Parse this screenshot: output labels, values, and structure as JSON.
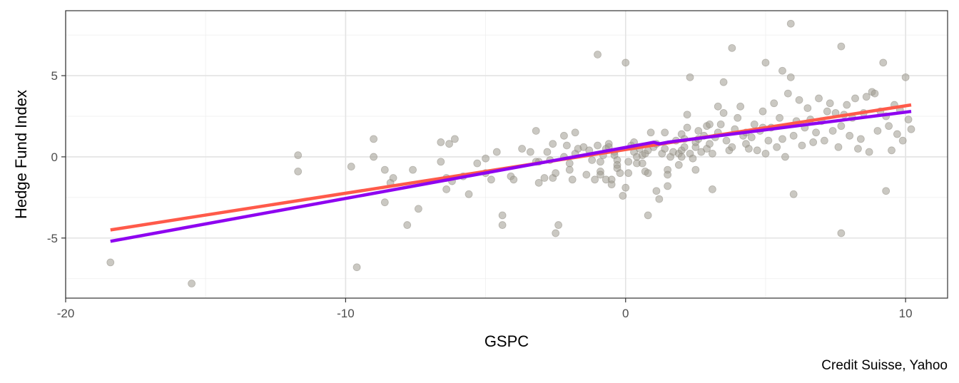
{
  "chart_data": {
    "type": "scatter",
    "xlabel": "GSPC",
    "ylabel": "Hedge Fund Index",
    "caption": "Credit Suisse, Yahoo",
    "xlim": [
      -20,
      11.5
    ],
    "ylim": [
      -8.7,
      9
    ],
    "x_ticks": [
      -20,
      -10,
      0,
      10
    ],
    "x_tick_labels": [
      "-20",
      "-10",
      "0",
      "10"
    ],
    "y_ticks": [
      -5,
      0,
      5
    ],
    "y_tick_labels": [
      "-5",
      "0",
      "5"
    ],
    "grid": true,
    "theme": "bw",
    "point_color": "#9e9a8f",
    "series": [
      {
        "type": "scatter",
        "points": [
          [
            -18.4,
            -6.5
          ],
          [
            -15.5,
            -7.8
          ],
          [
            -11.7,
            0.1
          ],
          [
            -11.7,
            -0.9
          ],
          [
            -9.8,
            -0.6
          ],
          [
            -9.6,
            -6.8
          ],
          [
            -9.0,
            1.1
          ],
          [
            -9.0,
            0.0
          ],
          [
            -8.6,
            -0.8
          ],
          [
            -8.6,
            -2.8
          ],
          [
            -8.4,
            -1.6
          ],
          [
            -8.3,
            -1.3
          ],
          [
            -7.8,
            -4.2
          ],
          [
            -7.6,
            -0.8
          ],
          [
            -7.4,
            -3.2
          ],
          [
            -6.6,
            0.9
          ],
          [
            -6.6,
            -0.3
          ],
          [
            -6.4,
            -1.3
          ],
          [
            -6.4,
            -2.0
          ],
          [
            -6.3,
            0.8
          ],
          [
            -6.2,
            -1.5
          ],
          [
            -6.1,
            1.1
          ],
          [
            -5.8,
            -1.2
          ],
          [
            -5.6,
            -2.3
          ],
          [
            -5.3,
            -0.4
          ],
          [
            -5.0,
            -0.1
          ],
          [
            -5.0,
            -1.0
          ],
          [
            -4.8,
            -1.4
          ],
          [
            -4.6,
            0.3
          ],
          [
            -4.4,
            -3.6
          ],
          [
            -4.4,
            -4.2
          ],
          [
            -4.1,
            -1.2
          ],
          [
            -4.0,
            -1.4
          ],
          [
            -3.7,
            0.5
          ],
          [
            -3.4,
            0.3
          ],
          [
            -3.2,
            1.6
          ],
          [
            -3.1,
            -0.3
          ],
          [
            -3.1,
            -1.6
          ],
          [
            -2.9,
            -1.3
          ],
          [
            -2.8,
            0.3
          ],
          [
            -2.7,
            -0.2
          ],
          [
            -2.6,
            0.8
          ],
          [
            -2.6,
            -1.3
          ],
          [
            -2.5,
            -1.0
          ],
          [
            -2.5,
            -4.7
          ],
          [
            -2.4,
            -4.2
          ],
          [
            -2.2,
            1.3
          ],
          [
            -2.1,
            0.7
          ],
          [
            -2.0,
            -0.4
          ],
          [
            -2.0,
            -0.8
          ],
          [
            -1.9,
            -1.4
          ],
          [
            -1.8,
            0.2
          ],
          [
            -1.7,
            0.5
          ],
          [
            -1.5,
            0.6
          ],
          [
            -1.4,
            -1.1
          ],
          [
            -1.3,
            0.4
          ],
          [
            -1.2,
            -0.2
          ],
          [
            -1.1,
            -1.4
          ],
          [
            -1.0,
            0.7
          ],
          [
            -1.0,
            6.3
          ],
          [
            -0.9,
            -0.3
          ],
          [
            -0.9,
            -0.9
          ],
          [
            -0.9,
            -1.1
          ],
          [
            -0.8,
            0.1
          ],
          [
            -0.7,
            0.5
          ],
          [
            -0.7,
            -1.4
          ],
          [
            -0.6,
            0.8
          ],
          [
            -0.6,
            0.6
          ],
          [
            -0.5,
            -1.4
          ],
          [
            -0.5,
            -1.7
          ],
          [
            -0.4,
            0.3
          ],
          [
            -0.4,
            0.1
          ],
          [
            -0.3,
            -0.2
          ],
          [
            -0.3,
            -0.5
          ],
          [
            -0.3,
            -0.7
          ],
          [
            -0.2,
            -1.0
          ],
          [
            -0.1,
            -2.4
          ],
          [
            0.0,
            -1.9
          ],
          [
            0.1,
            -1.0
          ],
          [
            0.1,
            -0.3
          ],
          [
            0.2,
            0.7
          ],
          [
            0.3,
            0.3
          ],
          [
            0.3,
            0.9
          ],
          [
            0.4,
            0.0
          ],
          [
            0.4,
            -0.4
          ],
          [
            0.5,
            0.5
          ],
          [
            0.6,
            0.1
          ],
          [
            0.6,
            -0.4
          ],
          [
            0.7,
            0.2
          ],
          [
            0.7,
            -0.9
          ],
          [
            0.8,
            0.4
          ],
          [
            0.8,
            -1.0
          ],
          [
            0.9,
            1.5
          ],
          [
            1.0,
            0.6
          ],
          [
            1.1,
            0.8
          ],
          [
            1.1,
            -2.1
          ],
          [
            1.2,
            -2.6
          ],
          [
            1.3,
            0.2
          ],
          [
            1.4,
            0.5
          ],
          [
            1.4,
            1.5
          ],
          [
            1.5,
            -0.8
          ],
          [
            1.5,
            -1.1
          ],
          [
            1.6,
            0.0
          ],
          [
            1.7,
            0.3
          ],
          [
            1.8,
            1.0
          ],
          [
            1.9,
            0.2
          ],
          [
            2.0,
            0.4
          ],
          [
            2.0,
            0.0
          ],
          [
            2.0,
            1.4
          ],
          [
            2.1,
            0.6
          ],
          [
            2.1,
            1.1
          ],
          [
            2.2,
            2.6
          ],
          [
            2.2,
            1.8
          ],
          [
            2.3,
            0.2
          ],
          [
            2.4,
            -0.1
          ],
          [
            2.5,
            0.6
          ],
          [
            2.5,
            0.9
          ],
          [
            2.6,
            1.1
          ],
          [
            2.6,
            1.6
          ],
          [
            2.7,
            0.3
          ],
          [
            2.8,
            1.3
          ],
          [
            2.9,
            0.5
          ],
          [
            2.9,
            1.9
          ],
          [
            3.0,
            2.0
          ],
          [
            3.0,
            0.8
          ],
          [
            3.1,
            0.2
          ],
          [
            3.2,
            1.2
          ],
          [
            3.3,
            1.5
          ],
          [
            3.3,
            3.1
          ],
          [
            3.4,
            2.0
          ],
          [
            3.5,
            2.7
          ],
          [
            3.6,
            1.0
          ],
          [
            3.7,
            0.4
          ],
          [
            3.8,
            0.6
          ],
          [
            3.9,
            1.7
          ],
          [
            4.0,
            2.4
          ],
          [
            4.1,
            3.1
          ],
          [
            4.2,
            1.3
          ],
          [
            4.3,
            0.8
          ],
          [
            4.3,
            1.5
          ],
          [
            4.4,
            0.5
          ],
          [
            4.5,
            1.2
          ],
          [
            4.6,
            2.0
          ],
          [
            4.7,
            0.4
          ],
          [
            4.8,
            1.6
          ],
          [
            4.9,
            2.8
          ],
          [
            5.0,
            0.2
          ],
          [
            5.1,
            1.0
          ],
          [
            5.2,
            1.8
          ],
          [
            5.3,
            3.3
          ],
          [
            5.4,
            0.6
          ],
          [
            5.5,
            2.4
          ],
          [
            5.6,
            1.1
          ],
          [
            5.7,
            0.0
          ],
          [
            5.8,
            3.9
          ],
          [
            5.9,
            4.9
          ],
          [
            6.0,
            1.3
          ],
          [
            6.1,
            2.2
          ],
          [
            6.2,
            3.5
          ],
          [
            6.3,
            0.7
          ],
          [
            6.4,
            1.8
          ],
          [
            6.5,
            3.0
          ],
          [
            6.6,
            2.3
          ],
          [
            6.7,
            0.9
          ],
          [
            6.8,
            1.5
          ],
          [
            6.9,
            3.6
          ],
          [
            7.0,
            2.2
          ],
          [
            7.1,
            1.0
          ],
          [
            7.2,
            2.8
          ],
          [
            7.3,
            3.3
          ],
          [
            7.4,
            1.6
          ],
          [
            7.5,
            2.7
          ],
          [
            7.6,
            0.6
          ],
          [
            7.7,
            1.9
          ],
          [
            7.8,
            2.6
          ],
          [
            7.9,
            3.2
          ],
          [
            8.0,
            1.3
          ],
          [
            8.1,
            2.4
          ],
          [
            8.2,
            3.6
          ],
          [
            8.3,
            0.5
          ],
          [
            8.4,
            1.1
          ],
          [
            8.5,
            2.7
          ],
          [
            8.6,
            3.7
          ],
          [
            8.7,
            0.3
          ],
          [
            8.8,
            4.0
          ],
          [
            8.9,
            3.9
          ],
          [
            9.0,
            1.6
          ],
          [
            9.1,
            2.8
          ],
          [
            9.2,
            5.8
          ],
          [
            9.3,
            2.5
          ],
          [
            9.4,
            1.9
          ],
          [
            9.5,
            0.4
          ],
          [
            9.6,
            3.2
          ],
          [
            9.7,
            1.4
          ],
          [
            9.8,
            2.9
          ],
          [
            9.9,
            1.0
          ],
          [
            10.0,
            4.9
          ],
          [
            10.1,
            2.3
          ],
          [
            10.2,
            1.7
          ],
          [
            3.5,
            4.6
          ],
          [
            3.8,
            6.7
          ],
          [
            5.9,
            8.2
          ],
          [
            5.0,
            5.8
          ],
          [
            5.6,
            5.3
          ],
          [
            7.7,
            6.8
          ],
          [
            2.3,
            4.9
          ],
          [
            0.0,
            5.8
          ],
          [
            6.0,
            -2.3
          ],
          [
            7.7,
            -4.7
          ],
          [
            9.3,
            -2.1
          ],
          [
            0.8,
            -3.6
          ],
          [
            -3.2,
            -0.3
          ],
          [
            2.5,
            -0.8
          ],
          [
            3.1,
            -2.0
          ],
          [
            1.9,
            -0.5
          ],
          [
            1.5,
            -1.8
          ],
          [
            -2.2,
            0.0
          ],
          [
            -1.8,
            1.5
          ],
          [
            4.9,
            1.8
          ]
        ]
      },
      {
        "type": "line",
        "name": "",
        "color": "#ff5a4a",
        "points": [
          [
            -18.4,
            -4.5
          ],
          [
            10.2,
            3.2
          ]
        ]
      },
      {
        "type": "line",
        "name": "",
        "color": "#8e04f0",
        "points": [
          [
            -18.4,
            -5.2
          ],
          [
            0.7,
            0.8
          ],
          [
            1.0,
            0.9
          ],
          [
            1.2,
            0.8
          ],
          [
            1.5,
            0.9
          ],
          [
            10.2,
            2.8
          ]
        ]
      }
    ]
  }
}
